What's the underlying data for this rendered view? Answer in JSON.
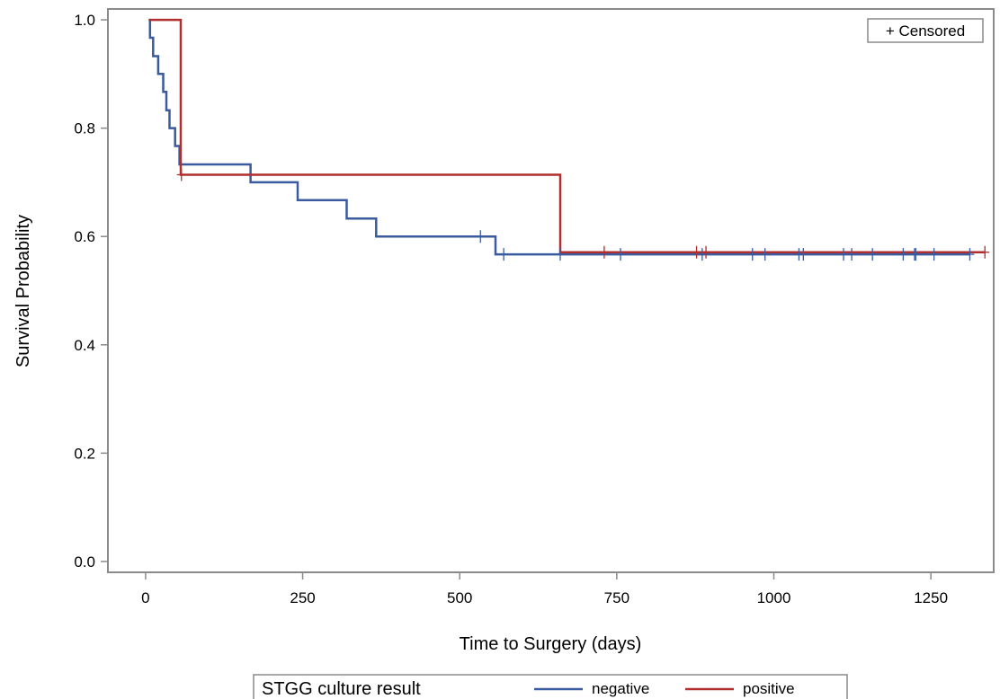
{
  "chart_data": {
    "type": "line",
    "subtype": "kaplan-meier step survival curve",
    "xlabel": "Time to Surgery (days)",
    "ylabel": "Survival Probability",
    "xlim": [
      -60,
      1350
    ],
    "ylim": [
      -0.02,
      1.02
    ],
    "xticks": [
      0,
      250,
      500,
      750,
      1000,
      1250
    ],
    "yticks": [
      0.0,
      0.2,
      0.4,
      0.6,
      0.8,
      1.0
    ],
    "xtick_labels": [
      "0",
      "250",
      "500",
      "750",
      "1000",
      "1250"
    ],
    "ytick_labels": [
      "0.0",
      "0.2",
      "0.4",
      "0.6",
      "0.8",
      "1.0"
    ],
    "grid": false,
    "censor_legend": "+ Censored",
    "legend": {
      "position": "bottom-center",
      "title": "STGG culture result",
      "entries": [
        "negative",
        "positive"
      ]
    },
    "series": [
      {
        "name": "negative",
        "color": "#3a5ba0",
        "steps": [
          [
            5,
            1.0
          ],
          [
            7,
            0.967
          ],
          [
            12,
            0.933
          ],
          [
            20,
            0.9
          ],
          [
            28,
            0.867
          ],
          [
            33,
            0.833
          ],
          [
            38,
            0.8
          ],
          [
            47,
            0.767
          ],
          [
            54,
            0.733
          ],
          [
            167,
            0.7
          ],
          [
            242,
            0.667
          ],
          [
            320,
            0.633
          ],
          [
            367,
            0.6
          ],
          [
            557,
            0.567
          ],
          [
            1312,
            0.567
          ]
        ],
        "censored": [
          533,
          570,
          660,
          756,
          886,
          966,
          986,
          1040,
          1047,
          1111,
          1124,
          1157,
          1206,
          1224,
          1226,
          1255,
          1312
        ]
      },
      {
        "name": "positive",
        "color": "#b02e2e",
        "steps": [
          [
            5,
            1.0
          ],
          [
            56,
            0.714
          ],
          [
            660,
            0.571
          ],
          [
            1336,
            0.571
          ]
        ],
        "censored": [
          57,
          730,
          877,
          892,
          1336
        ]
      }
    ]
  }
}
